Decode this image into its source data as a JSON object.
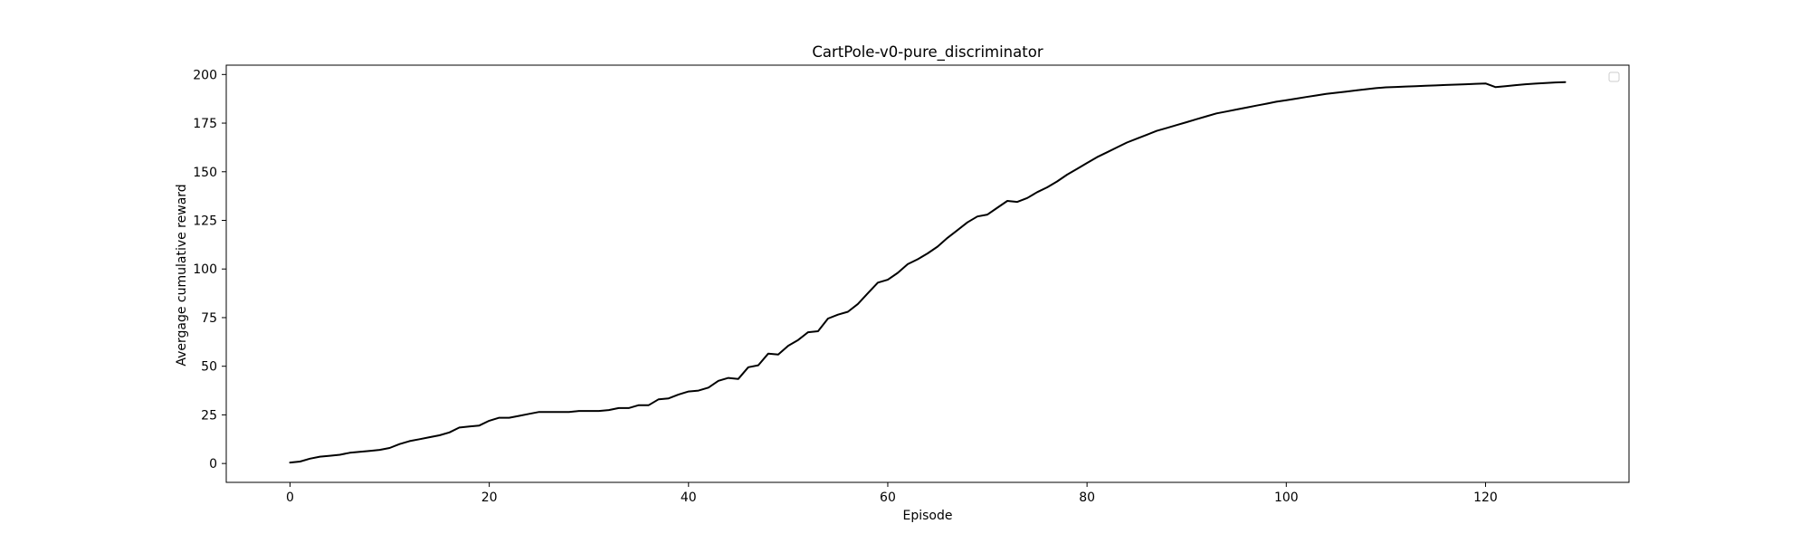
{
  "chart_data": {
    "type": "line",
    "title": "CartPole-v0-pure_discriminator",
    "xlabel": "Episode",
    "ylabel": "Avergage cumulative reward",
    "xlim": [
      -6.4,
      134.4
    ],
    "ylim": [
      -9.7,
      204.8
    ],
    "xticks": [
      0,
      20,
      40,
      60,
      80,
      100,
      120
    ],
    "yticks": [
      0,
      25,
      50,
      75,
      100,
      125,
      150,
      175,
      200
    ],
    "grid": false,
    "legend": "top-right (empty)",
    "line_color": "#000000",
    "series": [
      {
        "x": [
          0,
          1,
          2,
          3,
          4,
          5,
          6,
          7,
          8,
          9,
          10,
          11,
          12,
          13,
          14,
          15,
          16,
          17,
          18,
          19,
          20,
          21,
          22,
          23,
          24,
          25,
          26,
          27,
          28,
          29,
          30,
          31,
          32,
          33,
          34,
          35,
          36,
          37,
          38,
          39,
          40,
          41,
          42,
          43,
          44,
          45,
          46,
          47,
          48,
          49,
          50,
          51,
          52,
          53,
          54,
          55,
          56,
          57,
          58,
          59,
          60,
          61,
          62,
          63,
          64,
          65,
          66,
          67,
          68,
          69,
          70,
          71,
          72,
          73,
          74,
          75,
          76,
          77,
          78,
          79,
          80,
          81,
          82,
          83,
          84,
          85,
          86,
          87,
          88,
          89,
          90,
          91,
          92,
          93,
          94,
          95,
          96,
          97,
          98,
          99,
          100,
          101,
          102,
          103,
          104,
          105,
          106,
          107,
          108,
          109,
          110,
          111,
          112,
          113,
          114,
          115,
          116,
          117,
          118,
          119,
          120,
          121,
          122,
          123,
          124,
          125,
          126,
          127,
          128
        ],
        "values": [
          0.5,
          1.0,
          2.5,
          3.5,
          4.0,
          4.5,
          5.5,
          6.0,
          6.5,
          7.0,
          8.0,
          10.0,
          11.5,
          12.5,
          13.5,
          14.5,
          16.0,
          18.5,
          19.0,
          19.5,
          22.0,
          23.5,
          23.5,
          24.5,
          25.5,
          26.5,
          26.5,
          26.5,
          26.5,
          27.0,
          27.0,
          27.0,
          27.5,
          28.5,
          28.5,
          30.0,
          30.0,
          33.0,
          33.5,
          35.5,
          37.0,
          37.5,
          39.0,
          42.5,
          44.0,
          43.5,
          49.5,
          50.5,
          56.5,
          56.0,
          60.5,
          63.5,
          67.5,
          68.0,
          74.5,
          76.5,
          78.0,
          82.0,
          87.5,
          93.0,
          94.5,
          98.0,
          102.5,
          105.0,
          108.0,
          111.5,
          116.0,
          120.0,
          124.0,
          127.0,
          128.0,
          131.5,
          135.0,
          134.5,
          136.5,
          139.5,
          142.0,
          145.0,
          148.5,
          151.5,
          154.5,
          157.5,
          160.0,
          162.5,
          165.0,
          167.0,
          169.0,
          171.0,
          172.5,
          174.0,
          175.5,
          177.0,
          178.5,
          180.0,
          181.0,
          182.0,
          183.0,
          184.0,
          185.0,
          186.0,
          186.8,
          187.6,
          188.4,
          189.2,
          190.0,
          190.6,
          191.2,
          191.8,
          192.4,
          193.0,
          193.4,
          193.6,
          193.8,
          194.0,
          194.2,
          194.4,
          194.6,
          194.8,
          195.0,
          195.2,
          195.4,
          193.5,
          194.0,
          194.5,
          195.0,
          195.3,
          195.6,
          195.9,
          196.1
        ]
      }
    ]
  }
}
